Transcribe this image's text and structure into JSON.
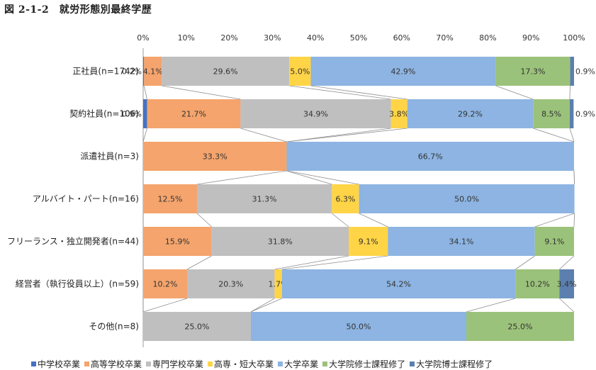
{
  "title": "図 2-1-2　就労形態別最終学歴",
  "chart_data": {
    "type": "bar",
    "orientation": "horizontal",
    "stacked": true,
    "xlim": [
      0,
      100
    ],
    "xticks": [
      "0%",
      "10%",
      "20%",
      "30%",
      "40%",
      "50%",
      "60%",
      "70%",
      "80%",
      "90%",
      "100%"
    ],
    "categories": [
      "正社員(n=1742)",
      "契約社員(n=106)",
      "派遣社員(n=3)",
      "アルバイト・パート(n=16)",
      "フリーランス・独立開発者(n=44)",
      "経営者（執行役員以上）(n=59)",
      "その他(n=8)"
    ],
    "series": [
      {
        "name": "中学校卒業",
        "color": "#4472c4",
        "values": [
          0.2,
          0.9,
          0,
          0,
          0,
          0,
          0
        ],
        "labels": [
          "0.2%",
          "0.9%",
          "",
          "",
          "",
          "",
          ""
        ]
      },
      {
        "name": "高等学校卒業",
        "color": "#f4a46c",
        "values": [
          4.1,
          21.7,
          33.3,
          12.5,
          15.9,
          10.2,
          0
        ],
        "labels": [
          "4.1%",
          "21.7%",
          "33.3%",
          "12.5%",
          "15.9%",
          "10.2%",
          ""
        ]
      },
      {
        "name": "専門学校卒業",
        "color": "#bfbfbf",
        "values": [
          29.6,
          34.9,
          0,
          31.3,
          31.8,
          20.3,
          25.0
        ],
        "labels": [
          "29.6%",
          "34.9%",
          "",
          "31.3%",
          "31.8%",
          "20.3%",
          "25.0%"
        ]
      },
      {
        "name": "高専・短大卒業",
        "color": "#ffd447",
        "values": [
          5.0,
          3.8,
          0,
          6.3,
          9.1,
          1.7,
          0
        ],
        "labels": [
          "5.0%",
          "3.8%",
          "",
          "6.3%",
          "9.1%",
          "1.7%",
          ""
        ]
      },
      {
        "name": "大学卒業",
        "color": "#8db4e2",
        "values": [
          42.9,
          29.2,
          66.7,
          50.0,
          34.1,
          54.2,
          50.0
        ],
        "labels": [
          "42.9%",
          "29.2%",
          "66.7%",
          "50.0%",
          "34.1%",
          "54.2%",
          "50.0%"
        ]
      },
      {
        "name": "大学院修士課程修了",
        "color": "#9bc27a",
        "values": [
          17.3,
          8.5,
          0,
          0,
          9.1,
          10.2,
          25.0
        ],
        "labels": [
          "17.3%",
          "8.5%",
          "",
          "",
          "9.1%",
          "10.2%",
          "25.0%"
        ]
      },
      {
        "name": "大学院博士課程修了",
        "color": "#5b7fae",
        "values": [
          0.9,
          0.9,
          0,
          0,
          0,
          3.4,
          0
        ],
        "labels": [
          "0.9%",
          "0.9%",
          "",
          "",
          "",
          "3.4%",
          ""
        ]
      }
    ],
    "legend_position": "bottom",
    "grid": true,
    "series_lines": true
  }
}
